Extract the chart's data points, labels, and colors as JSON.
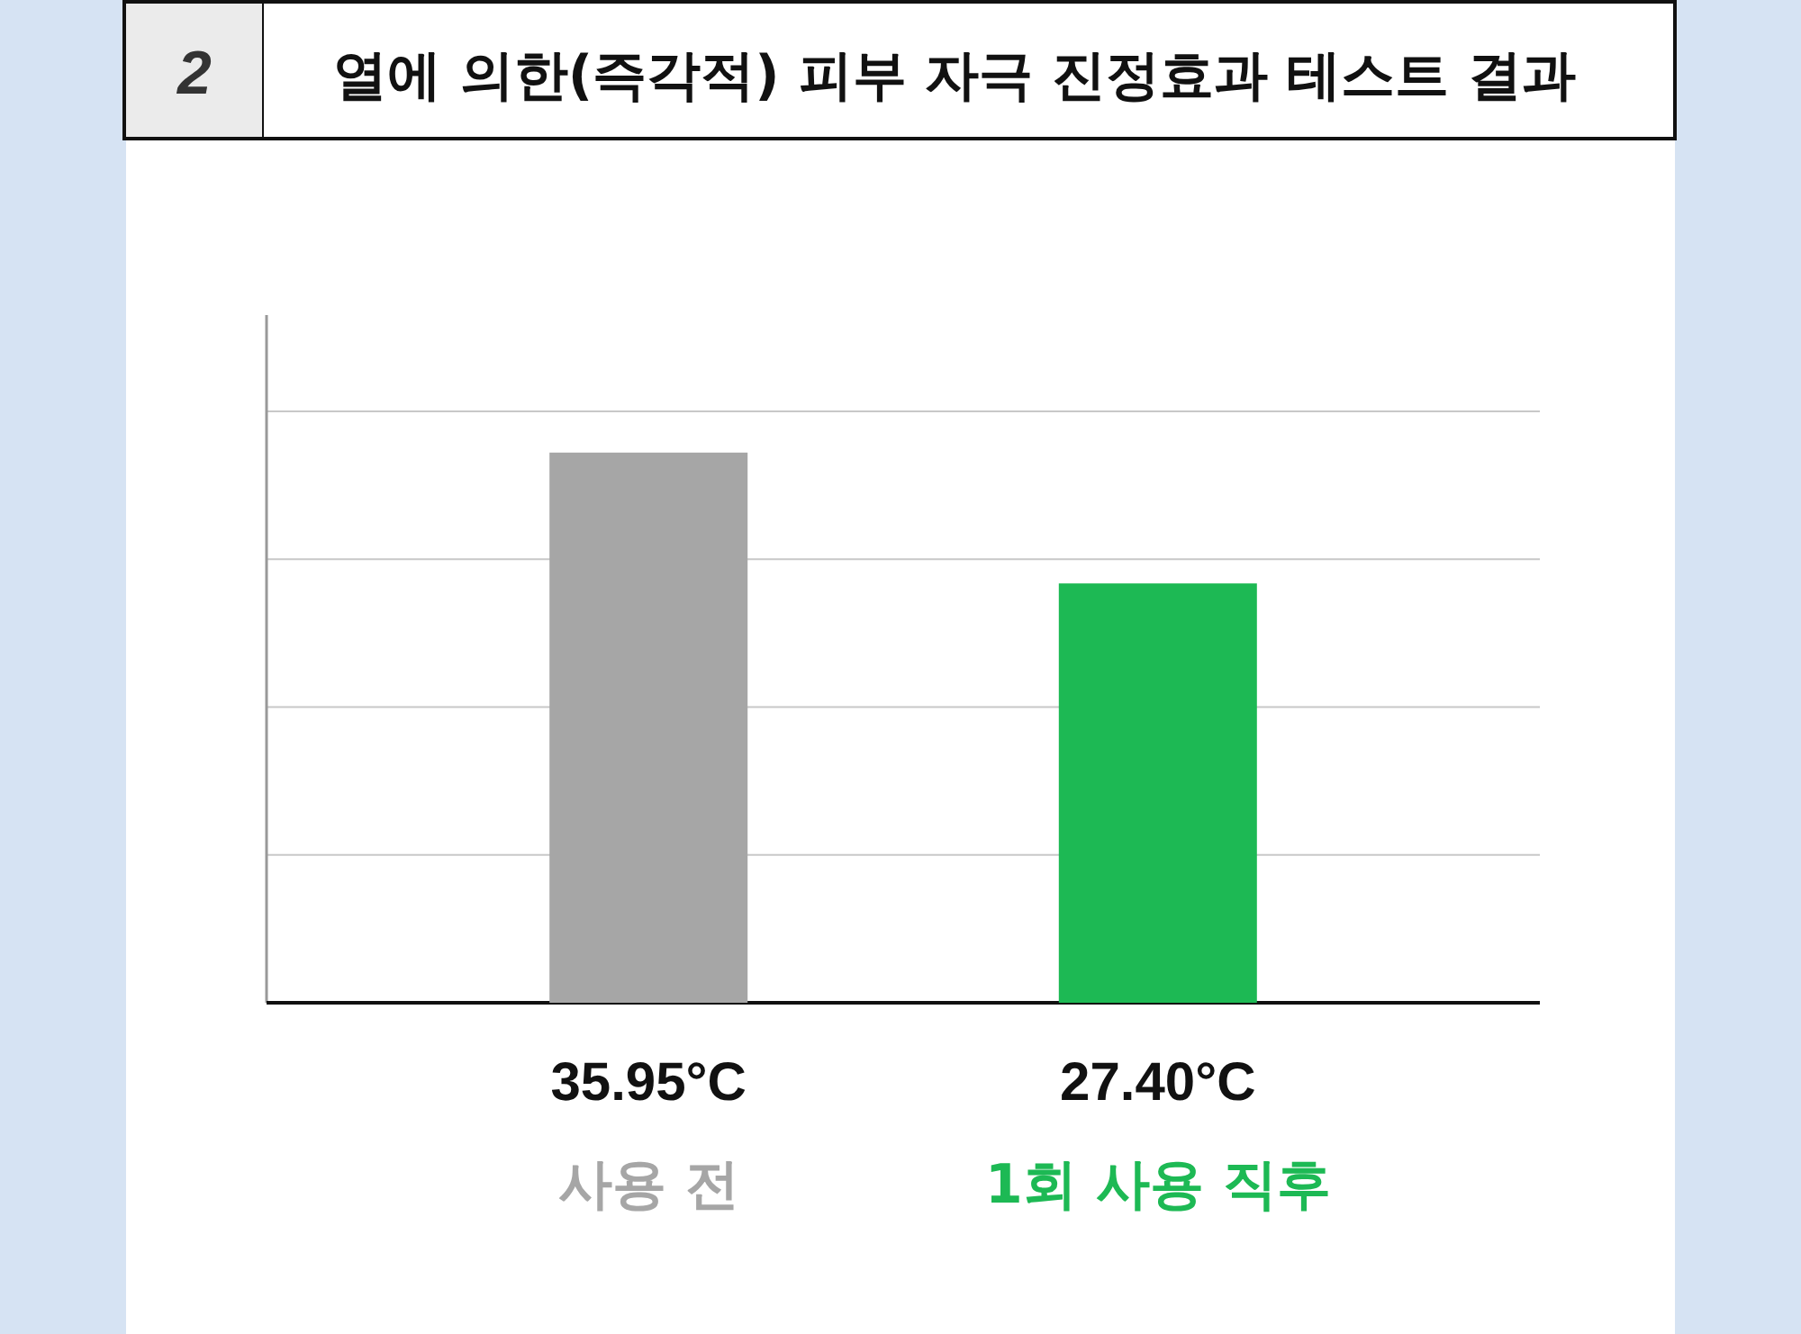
{
  "chart_data": {
    "type": "bar",
    "title": "열에 의한(즉각적) 피부 자극 진정효과  테스트 결과",
    "annotations": [
      "2"
    ],
    "categories": [
      "사용 전",
      "1회 사용 직후"
    ],
    "values": [
      35.95,
      27.4
    ],
    "value_labels": [
      "35.95°C",
      "27.40°C"
    ],
    "colors": [
      "#a6a6a6",
      "#1db954"
    ],
    "grid": "y"
  }
}
